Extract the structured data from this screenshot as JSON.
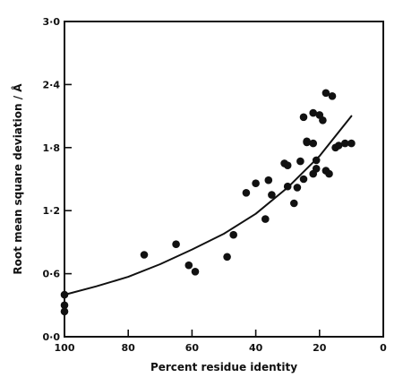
{
  "chart_data": {
    "type": "scatter",
    "title": "",
    "xlabel": "Percent residue identity",
    "ylabel": "Root mean square deviation / Å",
    "xlim": [
      100,
      0
    ],
    "ylim": [
      0.0,
      3.0
    ],
    "x_reversed": true,
    "grid": false,
    "legend": "none",
    "x_ticks": [
      100,
      80,
      60,
      40,
      20,
      0
    ],
    "x_tick_labels": [
      "100",
      "80",
      "60",
      "40",
      "20",
      "0"
    ],
    "y_ticks": [
      0.0,
      0.6,
      1.2,
      1.8,
      2.4,
      3.0
    ],
    "y_tick_labels": [
      "0·0",
      "0·6",
      "1·2",
      "1·8",
      "2·4",
      "3·0"
    ],
    "series": [
      {
        "kind": "points",
        "x": [
          100,
          100,
          100,
          75,
          65,
          61,
          59,
          49,
          47,
          43,
          40,
          37,
          36,
          35,
          31,
          30,
          30,
          28,
          27,
          26,
          25,
          25,
          24,
          24,
          22,
          22,
          22,
          21,
          21,
          20,
          19,
          18,
          18,
          17,
          16,
          15,
          14,
          12,
          10
        ],
        "y": [
          0.4,
          0.3,
          0.24,
          0.78,
          0.88,
          0.68,
          0.62,
          0.76,
          0.97,
          1.37,
          1.46,
          1.12,
          1.49,
          1.35,
          1.65,
          1.63,
          1.43,
          1.27,
          1.42,
          1.67,
          1.5,
          2.09,
          1.86,
          1.85,
          1.55,
          2.13,
          1.84,
          1.68,
          1.6,
          2.11,
          2.06,
          2.32,
          1.58,
          1.55,
          2.29,
          1.8,
          1.82,
          1.84,
          1.84
        ]
      },
      {
        "kind": "curve",
        "x": [
          100,
          90,
          80,
          70,
          60,
          50,
          40,
          30,
          20,
          10
        ],
        "y": [
          0.4,
          0.48,
          0.57,
          0.69,
          0.83,
          0.98,
          1.17,
          1.42,
          1.72,
          2.1
        ]
      }
    ]
  }
}
